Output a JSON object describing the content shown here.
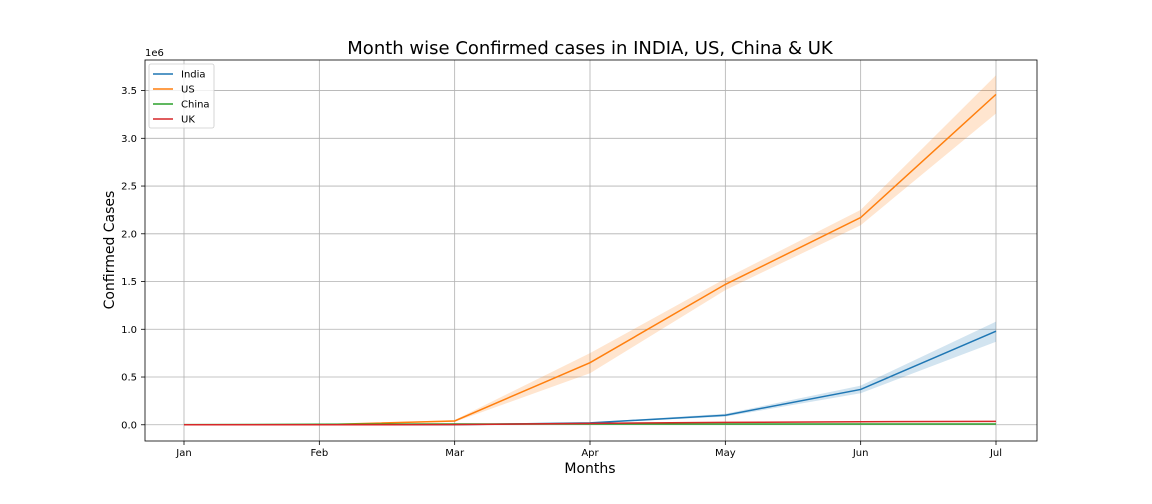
{
  "chart_data": {
    "type": "line",
    "title": "Month wise Confirmed cases in INDIA, US, China & UK",
    "xlabel": "Months",
    "ylabel": "Confirmed Cases",
    "y_offset_label": "1e6",
    "categories": [
      "Jan",
      "Feb",
      "Mar",
      "Apr",
      "May",
      "Jun",
      "Jul"
    ],
    "ylim": [
      -0.17,
      3.82
    ],
    "yticks": [
      0.0,
      0.5,
      1.0,
      1.5,
      2.0,
      2.5,
      3.0,
      3.5
    ],
    "ytick_labels": [
      "0.0",
      "0.5",
      "1.0",
      "1.5",
      "2.0",
      "2.5",
      "3.0",
      "3.5"
    ],
    "grid": true,
    "legend_position": "top-left",
    "series": [
      {
        "name": "India",
        "color": "#1f77b4",
        "values": [
          0.0,
          0.0,
          0.001,
          0.02,
          0.1,
          0.37,
          0.98
        ],
        "ci_low": [
          0.0,
          0.0,
          0.0,
          0.015,
          0.085,
          0.33,
          0.87
        ],
        "ci_high": [
          0.0,
          0.0,
          0.002,
          0.025,
          0.115,
          0.41,
          1.08
        ]
      },
      {
        "name": "US",
        "color": "#ff7f0e",
        "values": [
          0.0,
          0.0,
          0.04,
          0.65,
          1.47,
          2.17,
          3.46
        ],
        "ci_low": [
          0.0,
          0.0,
          0.03,
          0.54,
          1.41,
          2.09,
          3.26
        ],
        "ci_high": [
          0.0,
          0.0,
          0.05,
          0.75,
          1.53,
          2.25,
          3.66
        ]
      },
      {
        "name": "China",
        "color": "#2ca02c",
        "values": [
          0.001,
          0.005,
          0.008,
          0.008,
          0.008,
          0.008,
          0.008
        ],
        "ci_low": [
          0.0,
          0.004,
          0.008,
          0.008,
          0.008,
          0.008,
          0.008
        ],
        "ci_high": [
          0.002,
          0.006,
          0.008,
          0.008,
          0.008,
          0.008,
          0.008
        ]
      },
      {
        "name": "UK",
        "color": "#d62728",
        "values": [
          0.0,
          0.0,
          0.001,
          0.015,
          0.025,
          0.032,
          0.035
        ],
        "ci_low": [
          0.0,
          0.0,
          0.0,
          0.01,
          0.022,
          0.03,
          0.034
        ],
        "ci_high": [
          0.0,
          0.0,
          0.002,
          0.02,
          0.028,
          0.034,
          0.036
        ]
      }
    ]
  }
}
